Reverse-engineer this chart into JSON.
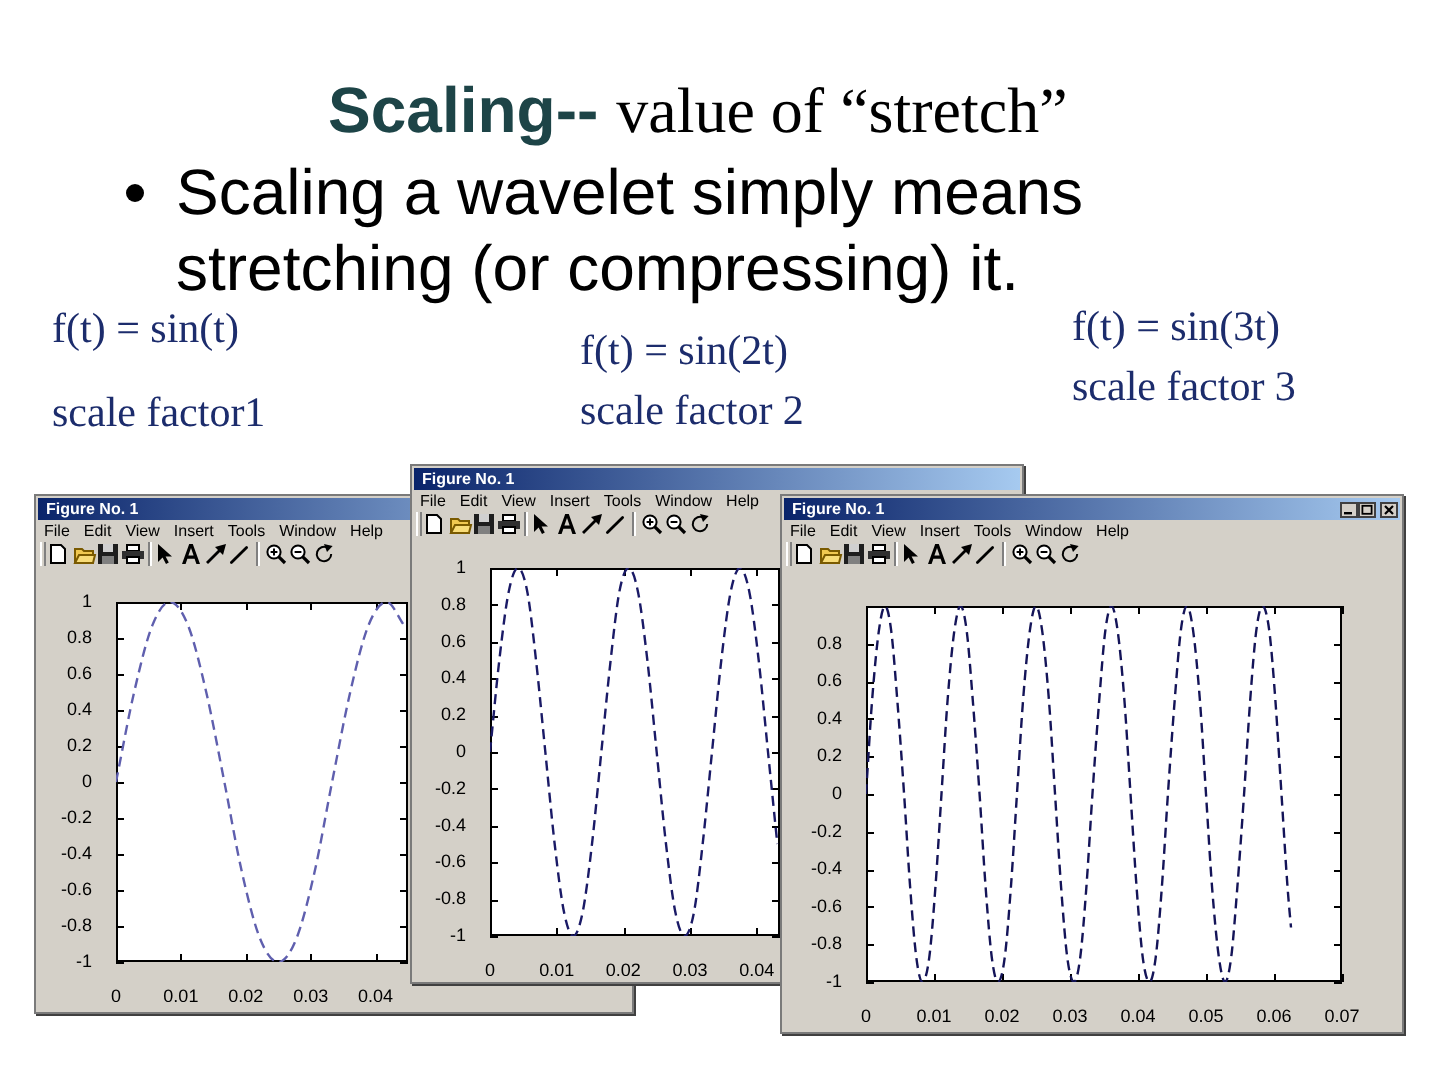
{
  "chart_data": [
    {
      "type": "other",
      "title": "Scaling--",
      "subtitle": "value of “stretch”",
      "annotations": [
        "Scaling a wavelet simply means stretching (or compressing) it."
      ]
    },
    {
      "type": "line",
      "title": "f(t) = sin(t)",
      "subtitle": "scale factor1",
      "annotations": [
        "Figure No. 1",
        "File",
        "Edit",
        "View",
        "Insert",
        "Tools",
        "Window",
        "Help"
      ],
      "line_style": "dashed",
      "x": [
        0,
        0.0028,
        0.0056,
        0.0083,
        0.0111,
        0.0139,
        0.0167,
        0.0194,
        0.0222,
        0.025,
        0.0278,
        0.0306,
        0.0333,
        0.0361,
        0.0389,
        0.0417,
        0.0444
      ],
      "series": [
        {
          "color": "#5f5fae",
          "values": [
            0,
            0.5,
            0.87,
            1,
            0.87,
            0.5,
            0,
            -0.5,
            -0.87,
            -1,
            -0.87,
            -0.5,
            0,
            0.5,
            0.87,
            1,
            0.87
          ]
        }
      ],
      "xlim": [
        0,
        0.045
      ],
      "ylim": [
        -1,
        1
      ],
      "xticks": [
        0,
        0.01,
        0.02,
        0.03,
        0.04
      ],
      "yticks": [
        -1,
        -0.8,
        -0.6,
        -0.4,
        -0.2,
        0,
        0.2,
        0.4,
        0.6,
        0.8,
        1
      ]
    },
    {
      "type": "line",
      "title": "f(t) = sin(2t)",
      "subtitle": "scale factor 2",
      "annotations": [
        "Figure No. 1",
        "File",
        "Edit",
        "View",
        "Insert",
        "Tools",
        "Window",
        "Help"
      ],
      "line_style": "dashed",
      "x": [
        0,
        0.0014,
        0.0028,
        0.0042,
        0.0056,
        0.0069,
        0.0083,
        0.0097,
        0.0111,
        0.0125,
        0.0139,
        0.0153,
        0.0167,
        0.0181,
        0.0194,
        0.0208,
        0.0222,
        0.0236,
        0.025,
        0.0264,
        0.0278,
        0.0292,
        0.0306,
        0.0319,
        0.0333,
        0.0347,
        0.0361,
        0.0375,
        0.0389,
        0.0403,
        0.0417,
        0.0431
      ],
      "series": [
        {
          "color": "#1a1a66",
          "values": [
            0,
            0.5,
            0.87,
            1,
            0.87,
            0.5,
            0,
            -0.5,
            -0.87,
            -1,
            -0.87,
            -0.5,
            0,
            0.5,
            0.87,
            1,
            0.87,
            0.5,
            0,
            -0.5,
            -0.87,
            -1,
            -0.87,
            -0.5,
            0,
            0.5,
            0.87,
            1,
            0.87,
            0.5,
            0,
            -0.5
          ]
        }
      ],
      "xlim": [
        0,
        0.0435
      ],
      "ylim": [
        -1,
        1
      ],
      "xticks": [
        0,
        0.01,
        0.02,
        0.03,
        0.04
      ],
      "yticks": [
        -1,
        -0.8,
        -0.6,
        -0.4,
        -0.2,
        0,
        0.2,
        0.4,
        0.6,
        0.8,
        1
      ]
    },
    {
      "type": "line",
      "title": "f(t) = sin(3t)",
      "subtitle": "scale factor 3",
      "annotations": [
        "Figure No. 1",
        "File",
        "Edit",
        "View",
        "Insert",
        "Tools",
        "Window",
        "Help"
      ],
      "line_style": "dashed",
      "x": [
        0,
        0.0009,
        0.0019,
        0.0028,
        0.0037,
        0.0046,
        0.0056,
        0.0065,
        0.0074,
        0.0083,
        0.0093,
        0.0102,
        0.0111,
        0.012,
        0.013,
        0.0139,
        0.0148,
        0.0157,
        0.0167,
        0.0176,
        0.0185,
        0.0194,
        0.0204,
        0.0213,
        0.0222,
        0.0231,
        0.0241,
        0.025,
        0.0259,
        0.0269,
        0.0278,
        0.0287,
        0.0296,
        0.0306,
        0.0315,
        0.0324,
        0.0333,
        0.0343,
        0.0352,
        0.0361,
        0.037,
        0.038,
        0.0389,
        0.0398,
        0.0407,
        0.0417,
        0.0426,
        0.0435,
        0.0444,
        0.0454,
        0.0463,
        0.0472,
        0.0481,
        0.0491,
        0.05,
        0.0509,
        0.0519,
        0.0528,
        0.0537,
        0.0546,
        0.0556,
        0.0565,
        0.0574,
        0.0583,
        0.0593,
        0.0602,
        0.0611,
        0.062,
        0.0625
      ],
      "series": [
        {
          "color": "#141458",
          "values": [
            0,
            0.5,
            0.87,
            1,
            0.87,
            0.5,
            0,
            -0.5,
            -0.87,
            -1,
            -0.87,
            -0.5,
            0,
            0.5,
            0.87,
            1,
            0.87,
            0.5,
            0,
            -0.5,
            -0.87,
            -1,
            -0.87,
            -0.5,
            0,
            0.5,
            0.87,
            1,
            0.87,
            0.5,
            0,
            -0.5,
            -0.87,
            -1,
            -0.87,
            -0.5,
            0,
            0.5,
            0.87,
            1,
            0.87,
            0.5,
            0,
            -0.5,
            -0.87,
            -1,
            -0.87,
            -0.5,
            0,
            0.5,
            0.87,
            1,
            0.87,
            0.5,
            0,
            -0.5,
            -0.87,
            -1,
            -0.87,
            -0.5,
            0,
            0.5,
            0.87,
            1,
            0.87,
            0.5,
            0,
            -0.5,
            -0.71
          ]
        }
      ],
      "xlim": [
        0,
        0.07
      ],
      "ylim": [
        -1,
        1
      ],
      "xticks": [
        0,
        0.01,
        0.02,
        0.03,
        0.04,
        0.05,
        0.06,
        0.07
      ],
      "yticks": [
        -1,
        -0.8,
        -0.6,
        -0.4,
        -0.2,
        0,
        0.2,
        0.4,
        0.6,
        0.8,
        {
          "value": 1,
          "label": null
        }
      ]
    }
  ]
}
